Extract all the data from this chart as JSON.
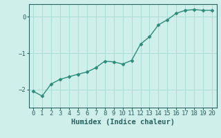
{
  "x": [
    0,
    1,
    2,
    3,
    4,
    5,
    6,
    7,
    8,
    9,
    10,
    11,
    12,
    13,
    14,
    15,
    16,
    17,
    18,
    19,
    20
  ],
  "y": [
    -2.05,
    -2.18,
    -1.85,
    -1.72,
    -1.65,
    -1.58,
    -1.52,
    -1.4,
    -1.22,
    -1.24,
    -1.3,
    -1.2,
    -0.75,
    -0.55,
    -0.22,
    -0.08,
    0.1,
    0.18,
    0.2,
    0.18,
    0.18
  ],
  "line_color": "#2e8b7a",
  "marker": "D",
  "marker_size": 2.5,
  "bg_color": "#cff0ea",
  "grid_color": "#a8ddd6",
  "xlabel": "Humidex (Indice chaleur)",
  "xlim": [
    -0.5,
    20.5
  ],
  "ylim": [
    -2.5,
    0.35
  ],
  "yticks": [
    -2,
    -1,
    0
  ],
  "xticks": [
    0,
    1,
    2,
    3,
    4,
    5,
    6,
    7,
    8,
    9,
    10,
    11,
    12,
    13,
    14,
    15,
    16,
    17,
    18,
    19,
    20
  ],
  "tick_fontsize": 6.5,
  "xlabel_fontsize": 7.5,
  "line_width": 1.0,
  "text_color": "#2a6060"
}
